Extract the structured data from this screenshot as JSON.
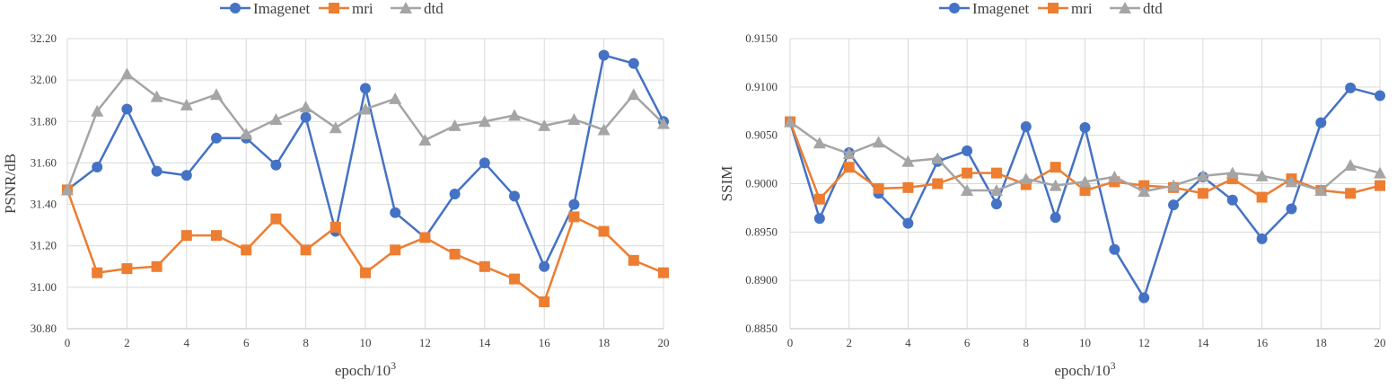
{
  "chart_data": [
    {
      "type": "line",
      "xlabel": "epoch/10",
      "xlabel_sup": "3",
      "ylabel": "PSNR/dB",
      "xlim": [
        0,
        20
      ],
      "ylim": [
        30.8,
        32.2
      ],
      "x_ticks": [
        0,
        2,
        4,
        6,
        8,
        10,
        12,
        14,
        16,
        18,
        20
      ],
      "y_ticks": [
        "30.80",
        "31.00",
        "31.20",
        "31.40",
        "31.60",
        "31.80",
        "32.00",
        "32.20"
      ],
      "grid": true,
      "legend_position": "top",
      "x": [
        0,
        1,
        2,
        3,
        4,
        5,
        6,
        7,
        8,
        9,
        10,
        11,
        12,
        13,
        14,
        15,
        16,
        17,
        18,
        19,
        20
      ],
      "series": [
        {
          "name": "Imagenet",
          "color": "#4472C4",
          "marker": "circle",
          "values": [
            31.47,
            31.58,
            31.86,
            31.56,
            31.54,
            31.72,
            31.72,
            31.59,
            31.82,
            31.27,
            31.96,
            31.36,
            31.24,
            31.45,
            31.6,
            31.44,
            31.1,
            31.4,
            32.12,
            32.08,
            31.8
          ]
        },
        {
          "name": "mri",
          "color": "#ED7D31",
          "marker": "square",
          "values": [
            31.47,
            31.07,
            31.09,
            31.1,
            31.25,
            31.25,
            31.18,
            31.33,
            31.18,
            31.29,
            31.07,
            31.18,
            31.24,
            31.16,
            31.1,
            31.04,
            30.93,
            31.34,
            31.27,
            31.13,
            31.07
          ]
        },
        {
          "name": "dtd",
          "color": "#A5A5A5",
          "marker": "triangle",
          "values": [
            31.47,
            31.85,
            32.03,
            31.92,
            31.88,
            31.93,
            31.74,
            31.81,
            31.87,
            31.77,
            31.86,
            31.91,
            31.71,
            31.78,
            31.8,
            31.83,
            31.78,
            31.81,
            31.76,
            31.93,
            31.79
          ]
        }
      ]
    },
    {
      "type": "line",
      "xlabel": "epoch/10",
      "xlabel_sup": "3",
      "ylabel": "SSIM",
      "xlim": [
        0,
        20
      ],
      "ylim": [
        0.885,
        0.915
      ],
      "x_ticks": [
        0,
        2,
        4,
        6,
        8,
        10,
        12,
        14,
        16,
        18,
        20
      ],
      "y_ticks": [
        "0.8850",
        "0.8900",
        "0.8950",
        "0.9000",
        "0.9050",
        "0.9100",
        "0.9150"
      ],
      "grid": true,
      "legend_position": "top",
      "x": [
        0,
        1,
        2,
        3,
        4,
        5,
        6,
        7,
        8,
        9,
        10,
        11,
        12,
        13,
        14,
        15,
        16,
        17,
        18,
        19,
        20
      ],
      "series": [
        {
          "name": "Imagenet",
          "color": "#4472C4",
          "marker": "circle",
          "values": [
            0.9064,
            0.8964,
            0.9032,
            0.899,
            0.8959,
            0.9023,
            0.9034,
            0.8979,
            0.9059,
            0.8965,
            0.9058,
            0.8932,
            0.8882,
            0.8978,
            0.9007,
            0.8983,
            0.8943,
            0.8974,
            0.9063,
            0.9099,
            0.9091
          ]
        },
        {
          "name": "mri",
          "color": "#ED7D31",
          "marker": "square",
          "values": [
            0.9064,
            0.8984,
            0.9017,
            0.8995,
            0.8996,
            0.9,
            0.9011,
            0.9011,
            0.8999,
            0.9017,
            0.8993,
            0.9002,
            0.8998,
            0.8996,
            0.899,
            0.9005,
            0.8986,
            0.9005,
            0.8993,
            0.899,
            0.8998
          ]
        },
        {
          "name": "dtd",
          "color": "#A5A5A5",
          "marker": "triangle",
          "values": [
            0.9064,
            0.9042,
            0.9031,
            0.9043,
            0.9023,
            0.9026,
            0.8993,
            0.8993,
            0.9005,
            0.8998,
            0.9002,
            0.9007,
            0.8992,
            0.8998,
            0.9008,
            0.9011,
            0.9008,
            0.9002,
            0.8993,
            0.9019,
            0.9011
          ]
        }
      ]
    }
  ]
}
